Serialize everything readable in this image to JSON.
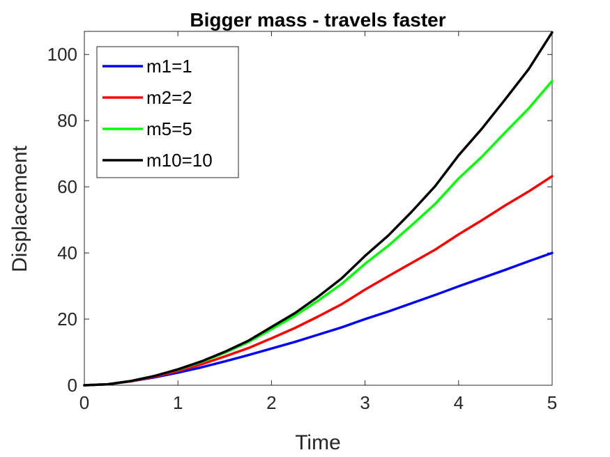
{
  "chart_data": {
    "type": "line",
    "title": "Bigger mass - travels faster",
    "xlabel": "Time",
    "ylabel": "Displacement",
    "xlim": [
      0,
      5
    ],
    "ylim": [
      0,
      107
    ],
    "xticks": [
      0,
      1,
      2,
      3,
      4,
      5
    ],
    "yticks": [
      0,
      20,
      40,
      60,
      80,
      100
    ],
    "grid": false,
    "legend_position": "top-left",
    "x": [
      0,
      0.25,
      0.5,
      0.75,
      1,
      1.25,
      1.5,
      1.75,
      2,
      2.25,
      2.5,
      2.75,
      3,
      3.25,
      3.5,
      3.75,
      4,
      4.25,
      4.5,
      4.75,
      5
    ],
    "series": [
      {
        "name": "m1=1",
        "color": "#0000ff",
        "values": [
          0,
          0.3,
          1.2,
          2.4,
          3.8,
          5.4,
          7.2,
          9.1,
          11.1,
          13.1,
          15.3,
          17.5,
          20.0,
          22.3,
          24.8,
          27.3,
          29.9,
          32.4,
          34.9,
          37.5,
          40.0
        ]
      },
      {
        "name": "m2=2",
        "color": "#ff0000",
        "values": [
          0,
          0.3,
          1.2,
          2.6,
          4.3,
          6.3,
          8.7,
          11.2,
          14.2,
          17.3,
          20.8,
          24.5,
          28.9,
          33.0,
          37.0,
          41.0,
          45.6,
          49.9,
          54.4,
          58.6,
          63.2
        ]
      },
      {
        "name": "m5=5",
        "color": "#00ff00",
        "values": [
          0,
          0.3,
          1.3,
          2.8,
          4.7,
          7.0,
          9.8,
          13.0,
          16.9,
          21.0,
          25.6,
          30.6,
          36.7,
          42.2,
          48.4,
          54.8,
          62.5,
          69.1,
          76.5,
          83.7,
          92.0
        ]
      },
      {
        "name": "m10=10",
        "color": "#000000",
        "values": [
          0,
          0.3,
          1.3,
          2.8,
          4.8,
          7.2,
          10.1,
          13.4,
          17.6,
          21.8,
          26.8,
          32.3,
          39.1,
          45.3,
          52.5,
          60.2,
          69.5,
          77.6,
          86.5,
          95.6,
          106.7
        ]
      }
    ]
  }
}
